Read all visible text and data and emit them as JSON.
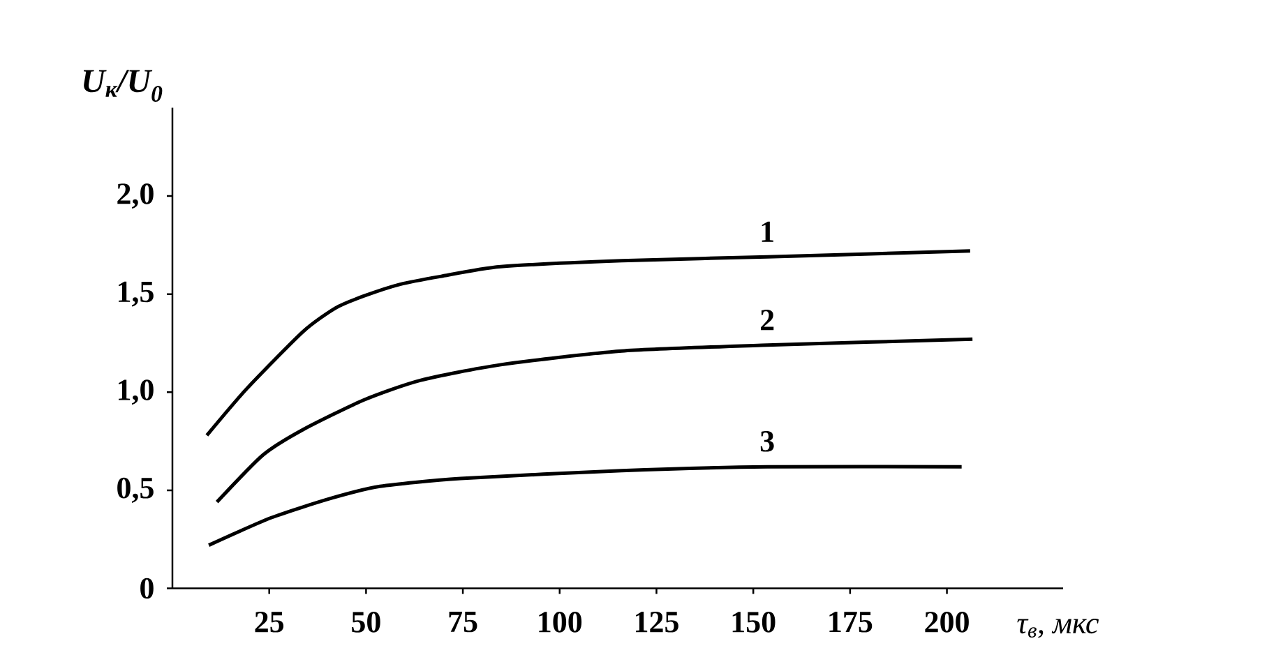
{
  "chart_data": {
    "type": "line",
    "xlabel": "τ$_{в}$, мкс",
    "ylabel": "U$_{к}$/U$_{0}$",
    "xlim": [
      0,
      230
    ],
    "ylim": [
      0,
      2.45
    ],
    "xticks": [
      25,
      50,
      75,
      100,
      125,
      150,
      175,
      200
    ],
    "yticks": [
      0,
      {
        "value": 0.5,
        "label": "0,5"
      },
      {
        "value": 1.0,
        "label": "1,0"
      },
      {
        "value": 1.5,
        "label": "1,5"
      },
      {
        "value": 2.0,
        "label": "2,0"
      }
    ],
    "series": [
      {
        "name": "1",
        "color": "#000000",
        "x": [
          8.9,
          19.3,
          33.8,
          42.2,
          49.4,
          58.8,
          69.2,
          84.8,
          116,
          153.6,
          206
        ],
        "values": [
          0.78,
          1.02,
          1.31,
          1.43,
          1.49,
          1.55,
          1.59,
          1.64,
          1.67,
          1.69,
          1.72
        ]
      },
      {
        "name": "2",
        "color": "#000000",
        "x": [
          11.5,
          23.4,
          33.8,
          49.4,
          64,
          84.8,
          116,
          153.6,
          206.6
        ],
        "values": [
          0.44,
          0.68,
          0.81,
          0.96,
          1.06,
          1.14,
          1.21,
          1.24,
          1.27
        ]
      },
      {
        "name": "3",
        "color": "#000000",
        "x": [
          9.4,
          25.5,
          41.1,
          53.6,
          74.4,
          116,
          153.6,
          203.8
        ],
        "values": [
          0.22,
          0.36,
          0.46,
          0.52,
          0.56,
          0.6,
          0.62,
          0.62
        ]
      }
    ]
  }
}
